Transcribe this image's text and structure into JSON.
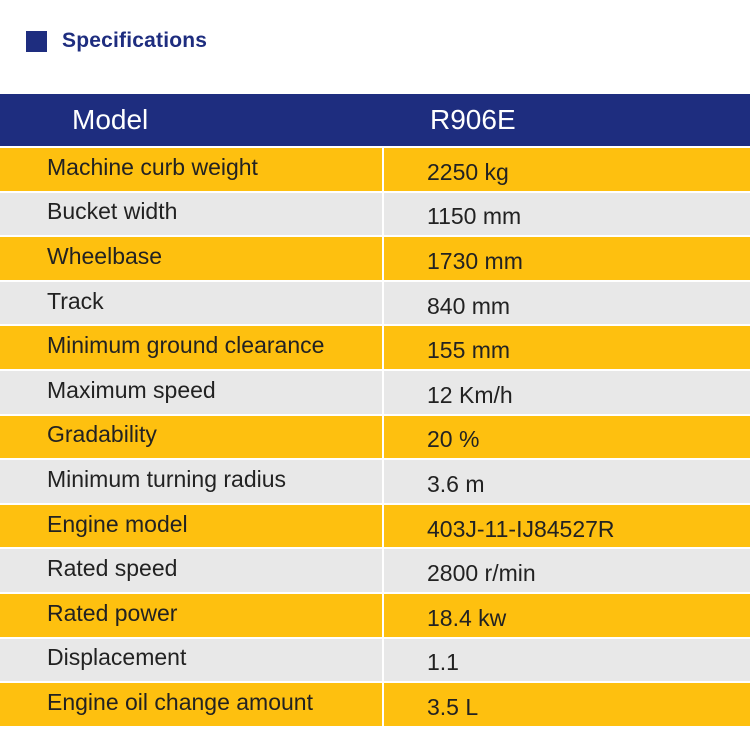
{
  "section": {
    "title": "Specifications"
  },
  "colors": {
    "navy": "#1e2d7f",
    "yellow": "#fec00f",
    "gray": "#e8e8e8"
  },
  "table": {
    "header": {
      "label": "Model",
      "value": "R906E"
    },
    "rows": [
      {
        "label": "Machine curb weight",
        "value": "2250 kg"
      },
      {
        "label": "Bucket width",
        "value": "1150 mm"
      },
      {
        "label": "Wheelbase",
        "value": "1730 mm"
      },
      {
        "label": "Track",
        "value": "840 mm"
      },
      {
        "label": "Minimum ground clearance",
        "value": "155 mm"
      },
      {
        "label": "Maximum speed",
        "value": "12 Km/h"
      },
      {
        "label": "Gradability",
        "value": "20 %"
      },
      {
        "label": "Minimum turning radius",
        "value": "3.6 m"
      },
      {
        "label": "Engine model",
        "value": "403J-11-IJ84527R"
      },
      {
        "label": "Rated speed",
        "value": "2800 r/min"
      },
      {
        "label": "Rated power",
        "value": "18.4 kw"
      },
      {
        "label": "Displacement",
        "value": "1.1"
      },
      {
        "label": "Engine oil change amount",
        "value": "3.5 L"
      }
    ]
  }
}
